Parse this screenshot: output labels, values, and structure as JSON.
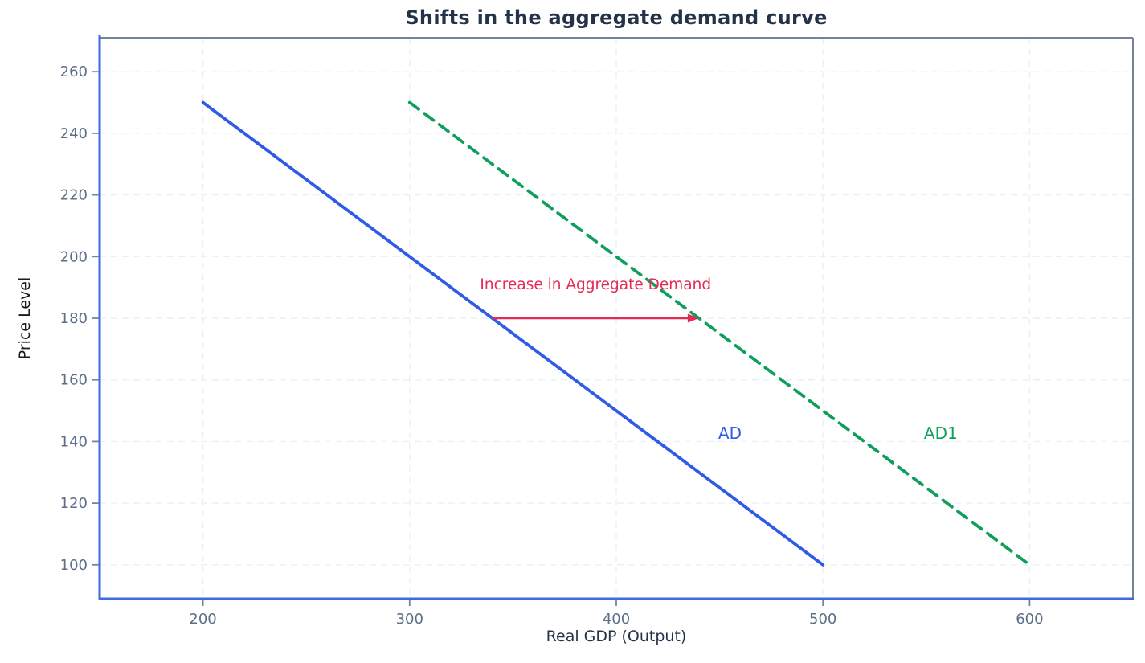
{
  "chart_data": {
    "type": "line",
    "title": "Shifts in the aggregate demand curve",
    "xlabel": "Real GDP (Output)",
    "ylabel": "Price Level",
    "xlim": [
      150,
      650
    ],
    "ylim": [
      89,
      271
    ],
    "x_ticks": [
      200,
      300,
      400,
      500,
      600
    ],
    "y_ticks": [
      100,
      120,
      140,
      160,
      180,
      200,
      220,
      240,
      260
    ],
    "grid": true,
    "series": [
      {
        "name": "AD",
        "x": [
          200,
          500
        ],
        "y": [
          250,
          100
        ],
        "style": "solid",
        "color": "#2f5be6",
        "label": {
          "text": "AD",
          "x": 455,
          "y": 143
        }
      },
      {
        "name": "AD1",
        "x": [
          300,
          600
        ],
        "y": [
          250,
          100
        ],
        "style": "dashed",
        "color": "#109e5c",
        "label": {
          "text": "AD1",
          "x": 557,
          "y": 143
        }
      }
    ],
    "annotations": [
      {
        "text": "Increase in Aggregate Demand",
        "color": "#e62a55",
        "text_x": 390,
        "text_y": 191,
        "arrow": {
          "from_x": 340,
          "to_x": 440,
          "y": 180
        }
      }
    ],
    "colors": {
      "spine_primary": "#3e6ae3",
      "spine_secondary": "#75839b",
      "tick_mark": "#75839b",
      "grid": "#e9f0f9",
      "tick_label": "#5d6e87",
      "title": "#25334a",
      "axis_label": "#25334a",
      "background": "#ffffff"
    }
  }
}
